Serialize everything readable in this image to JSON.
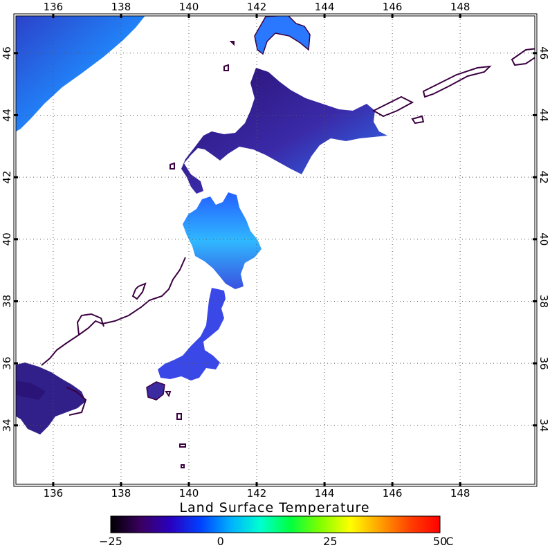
{
  "title": "Land Surface Temperature",
  "x_axis": {
    "ticks": [
      136,
      138,
      140,
      142,
      144,
      146,
      148
    ],
    "labels": [
      "136",
      "138",
      "140",
      "142",
      "144",
      "146",
      "148"
    ]
  },
  "y_axis": {
    "ticks": [
      34,
      36,
      38,
      40,
      42,
      44,
      46
    ],
    "labels": [
      "34",
      "36",
      "38",
      "40",
      "42",
      "44",
      "46"
    ]
  },
  "extent": {
    "lon": [
      134.9,
      150.2
    ],
    "lat": [
      32.1,
      47.2
    ]
  },
  "grid": true,
  "colorbar": {
    "min": -25,
    "max": 50,
    "ticks": [
      -25,
      0,
      25,
      50
    ],
    "tick_labels": [
      "−25",
      "0",
      "25",
      "50"
    ],
    "unit": "C",
    "colors": [
      "#000000",
      "#3a0060",
      "#2a00c0",
      "#0040ff",
      "#00b0ff",
      "#00ffd0",
      "#00ff40",
      "#80ff00",
      "#ffff00",
      "#ffa000",
      "#ff4000",
      "#ff0000"
    ]
  },
  "colors": {
    "coastline": "#3a0040",
    "land_cold": "#2a1a8a",
    "land_mid": "#3c4cff",
    "land_bright": "#1aa8ff"
  }
}
